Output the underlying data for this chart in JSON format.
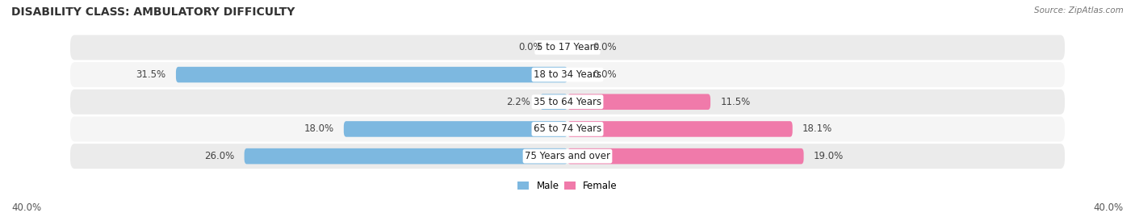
{
  "title": "DISABILITY CLASS: AMBULATORY DIFFICULTY",
  "source": "Source: ZipAtlas.com",
  "categories": [
    "5 to 17 Years",
    "18 to 34 Years",
    "35 to 64 Years",
    "65 to 74 Years",
    "75 Years and over"
  ],
  "male_values": [
    0.0,
    31.5,
    2.2,
    18.0,
    26.0
  ],
  "female_values": [
    0.0,
    0.0,
    11.5,
    18.1,
    19.0
  ],
  "x_max": 40.0,
  "male_color": "#7db8e0",
  "female_color": "#f07aaa",
  "row_bg_even": "#ebebeb",
  "row_bg_odd": "#f5f5f5",
  "label_font_size": 8.5,
  "title_font_size": 10,
  "source_font_size": 7.5,
  "legend_male": "Male",
  "legend_female": "Female",
  "axis_label_left": "40.0%",
  "axis_label_right": "40.0%"
}
